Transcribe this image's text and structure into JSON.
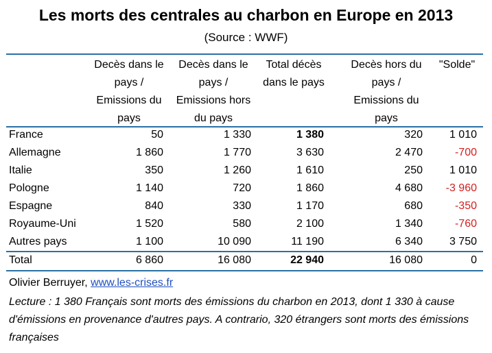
{
  "title": "Les morts des centrales au charbon en Europe en 2013",
  "subtitle": "(Source : WWF)",
  "headers": {
    "col1": [
      "Decès dans le",
      "pays /",
      "Emissions du",
      "pays"
    ],
    "col2": [
      "Decès dans le",
      "pays /",
      "Emissions hors",
      "du pays"
    ],
    "col3": [
      "Total décès",
      "dans le pays"
    ],
    "col4": [
      "Decès hors du",
      "pays /",
      "Emissions du",
      "pays"
    ],
    "col5": [
      "\"Solde\""
    ]
  },
  "rows": [
    {
      "label": "France",
      "v1": "50",
      "v2": "1 330",
      "v3": "1 380",
      "v4": "320",
      "v5": "1 010"
    },
    {
      "label": "Allemagne",
      "v1": "1 860",
      "v2": "1 770",
      "v3": "3 630",
      "v4": "2 470",
      "v5": "-700"
    },
    {
      "label": "Italie",
      "v1": "350",
      "v2": "1 260",
      "v3": "1 610",
      "v4": "250",
      "v5": "1 010"
    },
    {
      "label": "Pologne",
      "v1": "1 140",
      "v2": "720",
      "v3": "1 860",
      "v4": "4 680",
      "v5": "-3 960"
    },
    {
      "label": "Espagne",
      "v1": "840",
      "v2": "330",
      "v3": "1 170",
      "v4": "680",
      "v5": "-350"
    },
    {
      "label": "Royaume-Uni",
      "v1": "1 520",
      "v2": "580",
      "v3": "2 100",
      "v4": "1 340",
      "v5": "-760"
    },
    {
      "label": "Autres pays",
      "v1": "1 100",
      "v2": "10 090",
      "v3": "11 190",
      "v4": "6 340",
      "v5": "3 750"
    },
    {
      "label": "Total",
      "v1": "6 860",
      "v2": "16 080",
      "v3": "22 940",
      "v4": "16 080",
      "v5": "0"
    }
  ],
  "footer": {
    "author": "Olivier Berruyer, ",
    "link": "www.les-crises.fr"
  },
  "note": "Lecture : 1 380 Français sont morts des émissions du charbon en 2013, dont 1 330 à cause d'émissions en provenance d'autres pays. A contrario, 320 étrangers sont morts des émissions françaises",
  "colors": {
    "rule": "#2a6fa5",
    "negative": "#d21f1f",
    "link": "#1f4fbf"
  }
}
